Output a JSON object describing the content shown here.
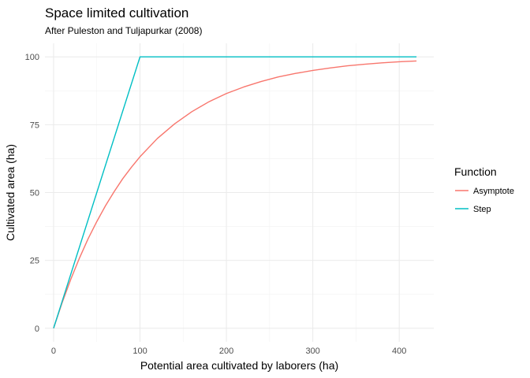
{
  "chart_data": {
    "type": "line",
    "title": "Space limited cultivation",
    "subtitle": "After Puleston and Tuljapurkar (2008)",
    "xlabel": "Potential area cultivated by laborers (ha)",
    "ylabel": "Cultivated area (ha)",
    "xlim": [
      -10,
      440
    ],
    "ylim": [
      -5,
      105
    ],
    "x_ticks": [
      0,
      100,
      200,
      300,
      400
    ],
    "x_tick_labels": [
      "0",
      "100",
      "200",
      "300",
      "400"
    ],
    "y_ticks": [
      0,
      25,
      50,
      75,
      100
    ],
    "y_tick_labels": [
      "0",
      "25",
      "50",
      "75",
      "100"
    ],
    "grid": true,
    "legend": {
      "title": "Function",
      "position": "right"
    },
    "series": [
      {
        "name": "Asymptote",
        "color": "#F8766D",
        "x": [
          0,
          10,
          20,
          30,
          40,
          50,
          60,
          70,
          80,
          90,
          100,
          120,
          140,
          160,
          180,
          200,
          220,
          240,
          260,
          280,
          300,
          320,
          340,
          360,
          380,
          400,
          420
        ],
        "y": [
          0,
          9.5,
          18.1,
          25.9,
          33.0,
          39.3,
          45.1,
          50.3,
          55.1,
          59.3,
          63.2,
          69.9,
          75.3,
          79.8,
          83.5,
          86.5,
          88.9,
          90.9,
          92.6,
          93.9,
          95.0,
          95.9,
          96.7,
          97.3,
          97.8,
          98.2,
          98.5
        ]
      },
      {
        "name": "Step",
        "color": "#00BFC4",
        "x": [
          0,
          100,
          420
        ],
        "y": [
          0,
          100,
          100
        ]
      }
    ]
  }
}
